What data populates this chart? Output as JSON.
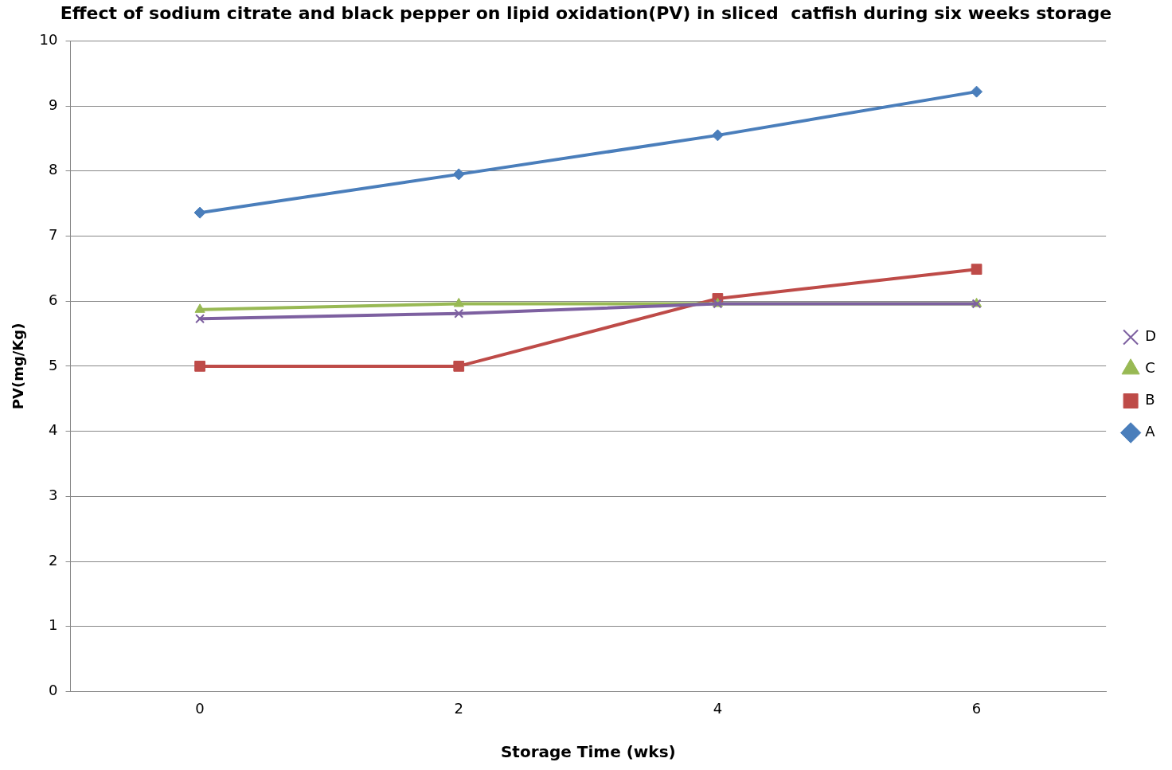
{
  "chart_data": {
    "type": "line",
    "title": "Effect of sodium citrate and black pepper on lipid oxidation(PV) in sliced  catfish during six weeks storage",
    "xlabel": "Storage Time (wks)",
    "ylabel": "PV(mg/Kg)",
    "categories": [
      "0",
      "2",
      "4",
      "6"
    ],
    "series": [
      {
        "name": "A",
        "color": "#4a7ebb",
        "marker": "diamond",
        "values": [
          7.36,
          7.95,
          8.55,
          9.22
        ]
      },
      {
        "name": "B",
        "color": "#be4b48",
        "marker": "square",
        "values": [
          5.0,
          5.0,
          6.04,
          6.49
        ]
      },
      {
        "name": "C",
        "color": "#98b954",
        "marker": "triangle",
        "values": [
          5.87,
          5.96,
          5.96,
          5.96
        ]
      },
      {
        "name": "D",
        "color": "#7d60a0",
        "marker": "cross",
        "values": [
          5.73,
          5.81,
          5.96,
          5.96
        ]
      }
    ],
    "ylim": [
      0,
      10
    ],
    "yticks": [
      0,
      1,
      2,
      3,
      4,
      5,
      6,
      7,
      8,
      9,
      10
    ],
    "grid": "y",
    "legend": "right",
    "line_style": "solid"
  }
}
